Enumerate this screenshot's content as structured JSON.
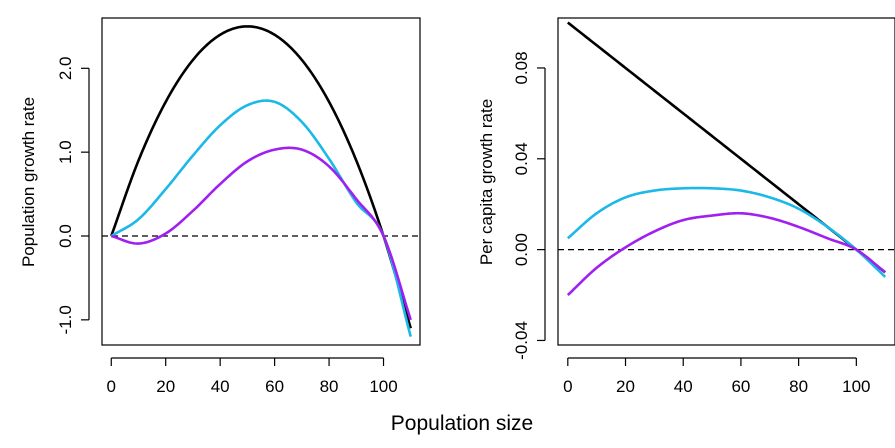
{
  "xlabel": "Population size",
  "chart_data": [
    {
      "type": "line",
      "title": "",
      "xlabel": "Population size",
      "ylabel": "Population growth rate",
      "xlim": [
        -3.4,
        113.4
      ],
      "ylim": [
        -1.3,
        2.6
      ],
      "xticks": [
        0,
        20,
        40,
        60,
        80,
        100
      ],
      "yticks": [
        -1.0,
        0.0,
        1.0,
        2.0
      ],
      "ytick_labels": [
        "-1.0",
        "0.0",
        "1.0",
        "2.0"
      ],
      "reference_line": {
        "y": 0,
        "style": "dashed"
      },
      "grid": false,
      "legend": "none",
      "x": [
        0,
        10,
        20,
        30,
        40,
        50,
        60,
        70,
        80,
        90,
        100,
        110
      ],
      "series": [
        {
          "color": "#000000",
          "values": [
            0,
            0.9,
            1.6,
            2.1,
            2.4,
            2.5,
            2.4,
            2.1,
            1.6,
            0.9,
            0,
            -1.1
          ]
        },
        {
          "color": "#1CB8E8",
          "values": [
            0,
            0.2,
            0.56,
            0.96,
            1.32,
            1.56,
            1.6,
            1.36,
            0.92,
            0.4,
            0,
            -1.2
          ]
        },
        {
          "color": "#A020F0",
          "values": [
            0,
            -0.09,
            0.03,
            0.3,
            0.62,
            0.89,
            1.03,
            1.03,
            0.83,
            0.44,
            0,
            -1.0
          ]
        }
      ]
    },
    {
      "type": "line",
      "title": "",
      "xlabel": "Population size",
      "ylabel": "Per capita growth rate",
      "xlim": [
        -3.4,
        113.4
      ],
      "ylim": [
        -0.042,
        0.102
      ],
      "xticks": [
        0,
        20,
        40,
        60,
        80,
        100
      ],
      "yticks": [
        -0.04,
        0.0,
        0.04,
        0.08
      ],
      "ytick_labels": [
        "-0.04",
        "0.00",
        "0.04",
        "0.08"
      ],
      "reference_line": {
        "y": 0,
        "style": "dashed"
      },
      "grid": false,
      "legend": "none",
      "x": [
        0,
        10,
        20,
        30,
        40,
        50,
        60,
        70,
        80,
        90,
        100,
        110
      ],
      "series": [
        {
          "color": "#000000",
          "values": [
            0.1,
            0.09,
            0.08,
            0.07,
            0.06,
            0.05,
            0.04,
            0.03,
            0.02,
            0.01,
            0,
            -0.01
          ]
        },
        {
          "color": "#1CB8E8",
          "values": [
            0.005,
            0.016,
            0.023,
            0.026,
            0.027,
            0.027,
            0.026,
            0.023,
            0.018,
            0.01,
            0,
            -0.012
          ]
        },
        {
          "color": "#A020F0",
          "values": [
            -0.02,
            -0.008,
            0.001,
            0.008,
            0.013,
            0.015,
            0.016,
            0.014,
            0.01,
            0.005,
            0,
            -0.01
          ]
        }
      ]
    }
  ]
}
